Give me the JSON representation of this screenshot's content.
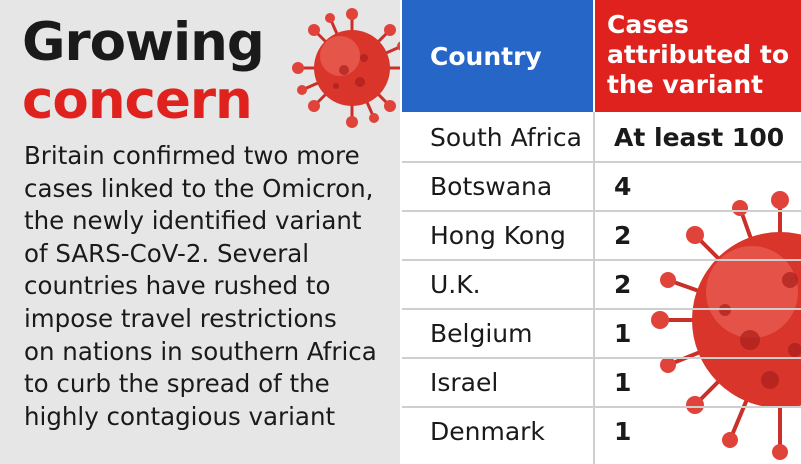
{
  "headline": {
    "line1": "Growing",
    "line2": "concern"
  },
  "body": "Britain confirmed two more\ncases linked to the Omicron,\nthe newly identified variant\nof SARS-CoV-2. Several\ncountries have rushed to\nimpose travel restrictions\non nations in southern Africa\nto curb the spread of the\nhighly contagious variant",
  "table": {
    "headers": {
      "country": "Country",
      "cases": "Cases\nattributed to\nthe variant"
    },
    "rows": [
      {
        "country": "South Africa",
        "cases": "At least 100"
      },
      {
        "country": "Botswana",
        "cases": "4"
      },
      {
        "country": "Hong Kong",
        "cases": "2"
      },
      {
        "country": "U.K.",
        "cases": "2"
      },
      {
        "country": "Belgium",
        "cases": "1"
      },
      {
        "country": "Israel",
        "cases": "1"
      },
      {
        "country": "Denmark",
        "cases": "1"
      }
    ]
  },
  "colors": {
    "headline_accent": "#e0221e",
    "country_header": "#2566c7",
    "cases_header": "#e0221e",
    "virus": "#d9352b"
  }
}
